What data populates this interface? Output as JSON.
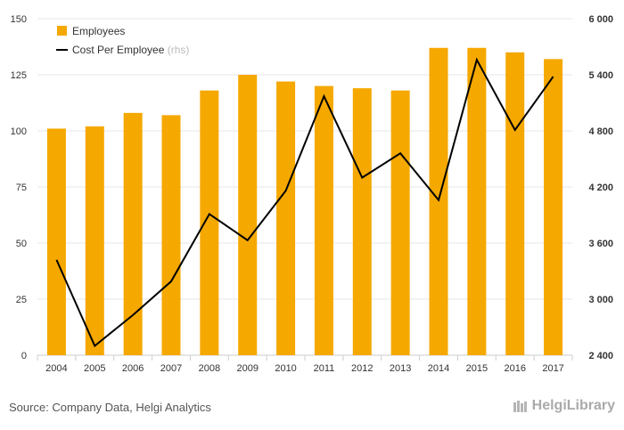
{
  "chart_data": {
    "type": "bar",
    "categories": [
      "2004",
      "2005",
      "2006",
      "2007",
      "2008",
      "2009",
      "2010",
      "2011",
      "2012",
      "2013",
      "2014",
      "2015",
      "2016",
      "2017"
    ],
    "series": [
      {
        "name": "Employees",
        "type": "bar",
        "axis": "left",
        "color": "#f5a800",
        "values": [
          101,
          102,
          108,
          107,
          118,
          125,
          122,
          120,
          119,
          118,
          137,
          137,
          135,
          132
        ]
      },
      {
        "name": "Cost Per Employee",
        "suffix": "(rhs)",
        "type": "line",
        "axis": "right",
        "color": "#000000",
        "values": [
          3420,
          2500,
          2830,
          3190,
          3910,
          3630,
          4160,
          5170,
          4300,
          4560,
          4060,
          5560,
          4810,
          5380
        ]
      }
    ],
    "left_axis": {
      "ylim": [
        0,
        150
      ],
      "ticks": [
        0,
        25,
        50,
        75,
        100,
        125,
        150
      ],
      "tick_labels": [
        "0",
        "25",
        "50",
        "75",
        "100",
        "125",
        "150"
      ]
    },
    "right_axis": {
      "ylim": [
        2400,
        6000
      ],
      "ticks": [
        2400,
        3000,
        3600,
        4200,
        4800,
        5400,
        6000
      ],
      "tick_labels": [
        "2 400",
        "3 000",
        "3 600",
        "4 200",
        "4 800",
        "5 400",
        "6 000"
      ]
    },
    "grid": true,
    "legend_position": "top-left"
  },
  "footer": {
    "source": "Source: Company Data, Helgi Analytics",
    "brand": "HelgiLibrary"
  },
  "colors": {
    "bar": "#f5a800",
    "line": "#000000",
    "grid": "#e6e6e6"
  }
}
